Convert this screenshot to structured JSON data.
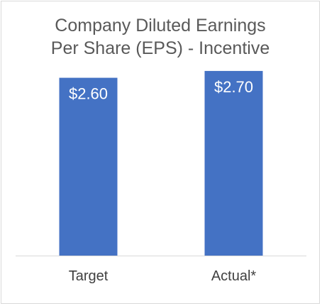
{
  "chart_data": {
    "type": "bar",
    "title_lines": [
      "Company Diluted Earnings",
      "Per Share (EPS) - Incentive"
    ],
    "categories": [
      "Target",
      "Actual*"
    ],
    "values": [
      2.6,
      2.7
    ],
    "value_labels": [
      "$2.60",
      "$2.70"
    ],
    "xlabel": "",
    "ylabel": "",
    "ylim": [
      0,
      2.72
    ],
    "grid": false,
    "legend": "none",
    "bar_color": "#4472c4",
    "axis_color": "#d9d9d9"
  }
}
